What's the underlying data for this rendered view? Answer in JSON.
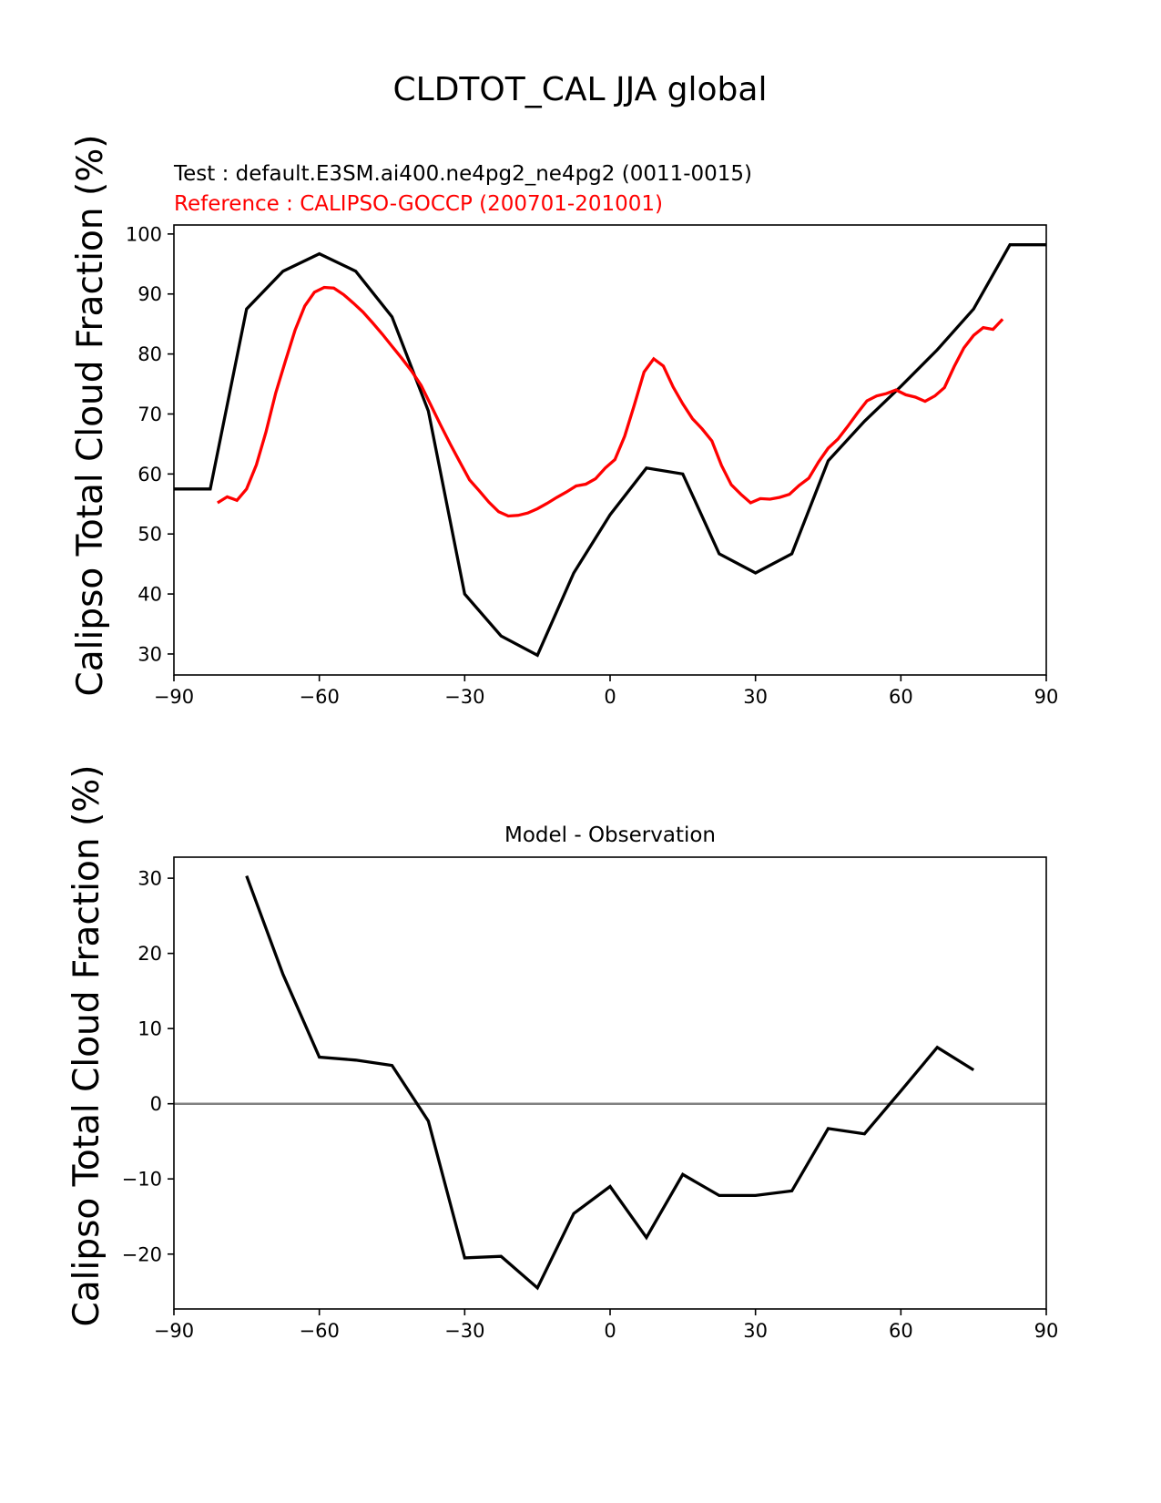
{
  "figure": {
    "title": "CLDTOT_CAL JJA global"
  },
  "chart_data": [
    {
      "type": "line",
      "subtitle_test": "Test : default.E3SM.ai400.ne4pg2_ne4pg2 (0011-0015)",
      "subtitle_reference": "Reference : CALIPSO-GOCCP (200701-201001)",
      "ylabel": "Calipso Total Cloud Fraction (%)",
      "xlabel": "",
      "xlim": [
        -90,
        90
      ],
      "ylim": [
        26.5,
        101.5
      ],
      "xticks": [
        -90,
        -60,
        -30,
        0,
        30,
        60,
        90
      ],
      "xtick_labels": [
        "−90",
        "−60",
        "−30",
        "0",
        "30",
        "60",
        "90"
      ],
      "yticks": [
        30,
        40,
        50,
        60,
        70,
        80,
        90,
        100
      ],
      "ytick_labels": [
        "30",
        "40",
        "50",
        "60",
        "70",
        "80",
        "90",
        "100"
      ],
      "grid": false,
      "series": [
        {
          "color": "#000000",
          "x": [
            -90,
            -82.5,
            -75,
            -67.5,
            -60,
            -52.5,
            -45,
            -37.5,
            -30,
            -22.5,
            -15,
            -7.5,
            0,
            7.5,
            15,
            22.5,
            30,
            37.5,
            45,
            52.5,
            60,
            67.5,
            75,
            82.5,
            90
          ],
          "y": [
            57.5,
            57.5,
            87.5,
            93.8,
            96.7,
            93.8,
            86.2,
            70.5,
            40.0,
            33.0,
            29.8,
            43.5,
            53.2,
            61.0,
            60.0,
            46.7,
            43.5,
            46.7,
            62.2,
            68.8,
            74.6,
            80.7,
            87.5,
            98.2,
            98.2
          ]
        },
        {
          "color": "#ff0000",
          "x": [
            -81,
            -79,
            -77,
            -75,
            -73,
            -71,
            -69,
            -67,
            -65,
            -63,
            -61,
            -59,
            -57,
            -55,
            -53,
            -51,
            -49,
            -47,
            -45,
            -43,
            -41,
            -39,
            -37,
            -35,
            -33,
            -31,
            -29,
            -27,
            -25,
            -23,
            -21,
            -19,
            -17,
            -15,
            -13,
            -11,
            -9,
            -7,
            -5,
            -3,
            -1,
            1,
            3,
            5,
            7,
            9,
            11,
            13,
            15,
            17,
            19,
            21,
            23,
            25,
            27,
            29,
            31,
            33,
            35,
            37,
            39,
            41,
            43,
            45,
            47,
            49,
            51,
            53,
            55,
            57,
            59,
            61,
            63,
            65,
            67,
            69,
            71,
            73,
            75,
            77,
            79,
            81
          ],
          "y": [
            55.2,
            56.2,
            55.6,
            57.5,
            61.5,
            67.0,
            73.5,
            78.8,
            84.0,
            88.0,
            90.3,
            91.1,
            91.0,
            89.9,
            88.5,
            87.0,
            85.2,
            83.3,
            81.3,
            79.3,
            77.2,
            74.8,
            71.5,
            68.2,
            65.0,
            62.0,
            59.0,
            57.2,
            55.3,
            53.7,
            53.0,
            53.1,
            53.5,
            54.2,
            55.1,
            56.1,
            57.0,
            58.0,
            58.3,
            59.2,
            61.0,
            62.4,
            66.3,
            71.5,
            77.0,
            79.2,
            78.0,
            74.5,
            71.7,
            69.2,
            67.5,
            65.5,
            61.4,
            58.2,
            56.6,
            55.2,
            55.9,
            55.8,
            56.1,
            56.6,
            58.1,
            59.3,
            62.0,
            64.3,
            65.8,
            67.9,
            70.1,
            72.2,
            73.0,
            73.4,
            74.0,
            73.2,
            72.8,
            72.1,
            73.0,
            74.4,
            77.9,
            81.0,
            83.1,
            84.4,
            84.1,
            85.8
          ]
        }
      ]
    },
    {
      "type": "line",
      "title": "Model - Observation",
      "ylabel": "Calipso Total Cloud Fraction (%)",
      "xlabel": "",
      "xlim": [
        -90,
        90
      ],
      "ylim": [
        -27.3,
        32.8
      ],
      "xticks": [
        -90,
        -60,
        -30,
        0,
        30,
        60,
        90
      ],
      "xtick_labels": [
        "−90",
        "−60",
        "−30",
        "0",
        "30",
        "60",
        "90"
      ],
      "yticks": [
        -20,
        -10,
        0,
        10,
        20,
        30
      ],
      "ytick_labels": [
        "−20",
        "−10",
        "0",
        "10",
        "20",
        "30"
      ],
      "grid": false,
      "reference_line": {
        "y": 0,
        "color": "#808080"
      },
      "series": [
        {
          "color": "#000000",
          "x": [
            -75,
            -67.5,
            -60,
            -52.5,
            -45,
            -37.5,
            -30,
            -22.5,
            -15,
            -7.5,
            0,
            7.5,
            15,
            22.5,
            30,
            37.5,
            45,
            52.5,
            60,
            67.5,
            75
          ],
          "y": [
            30.3,
            17.2,
            6.2,
            5.8,
            5.1,
            -2.3,
            -20.5,
            -20.3,
            -24.5,
            -14.6,
            -11.0,
            -17.8,
            -9.4,
            -12.2,
            -12.2,
            -11.6,
            -3.3,
            -4.0,
            1.7,
            7.5,
            4.5
          ]
        }
      ]
    }
  ]
}
